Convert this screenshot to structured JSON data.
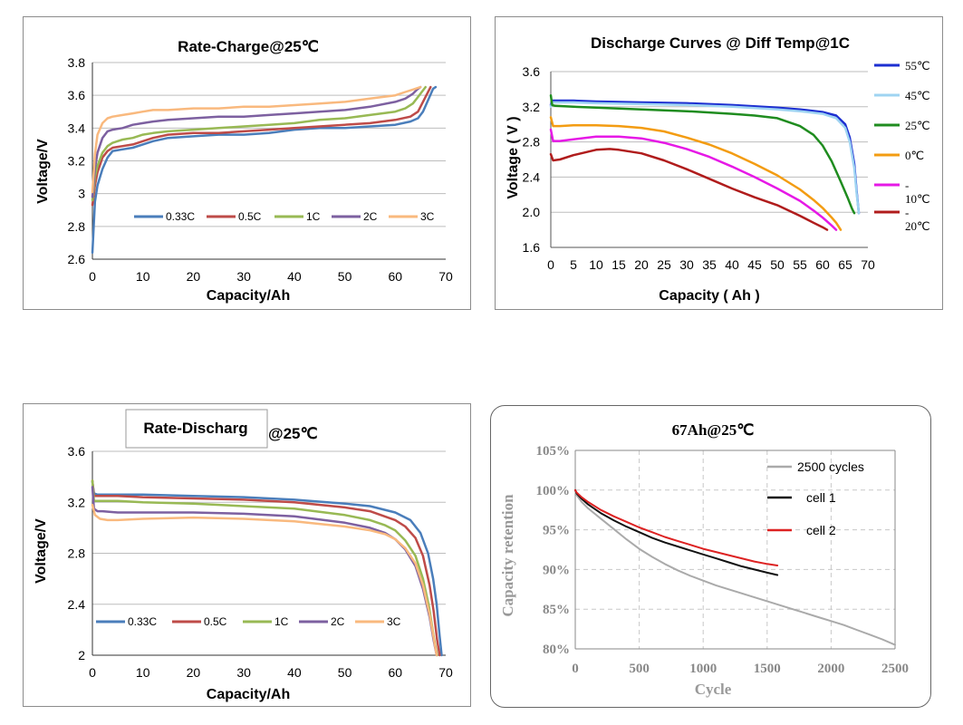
{
  "chart_data": [
    {
      "type": "line",
      "title": "Rate-Charge@25℃",
      "xlabel": "Capacity/Ah",
      "ylabel": "Voltage/V",
      "xlim": [
        0,
        70
      ],
      "ylim": [
        2.6,
        3.8
      ],
      "xticks": [
        "0",
        "10",
        "20",
        "30",
        "40",
        "50",
        "60",
        "70"
      ],
      "yticks": [
        "2.6",
        "2.8",
        "3",
        "3.2",
        "3.4",
        "3.6",
        "3.8"
      ],
      "grid": "horizontal",
      "legend": "bottom-left inside",
      "series": [
        {
          "name": "0.33C",
          "color": "#4a7ebb",
          "x": [
            0,
            0.5,
            1,
            2,
            3,
            4,
            6,
            8,
            10,
            12,
            15,
            20,
            25,
            30,
            35,
            40,
            45,
            50,
            55,
            60,
            63,
            64.5,
            65.5,
            66.5,
            67.5,
            68
          ],
          "y": [
            2.64,
            2.95,
            3.05,
            3.15,
            3.22,
            3.26,
            3.27,
            3.28,
            3.3,
            3.32,
            3.34,
            3.35,
            3.36,
            3.36,
            3.37,
            3.39,
            3.4,
            3.4,
            3.41,
            3.42,
            3.44,
            3.46,
            3.5,
            3.57,
            3.64,
            3.65
          ]
        },
        {
          "name": "0.5C",
          "color": "#be4b48",
          "x": [
            0,
            0.5,
            1,
            2,
            3,
            4,
            6,
            8,
            10,
            12,
            15,
            20,
            25,
            30,
            35,
            40,
            45,
            50,
            55,
            60,
            63,
            64.5,
            65.5,
            66.5,
            67
          ],
          "y": [
            2.93,
            3.05,
            3.13,
            3.22,
            3.26,
            3.28,
            3.29,
            3.3,
            3.32,
            3.34,
            3.36,
            3.37,
            3.37,
            3.38,
            3.39,
            3.4,
            3.41,
            3.42,
            3.43,
            3.45,
            3.47,
            3.5,
            3.56,
            3.62,
            3.65
          ]
        },
        {
          "name": "1C",
          "color": "#98b954",
          "x": [
            0,
            0.5,
            1,
            2,
            3,
            4,
            6,
            8,
            10,
            12,
            15,
            20,
            25,
            30,
            35,
            40,
            45,
            50,
            55,
            60,
            62,
            63.5,
            64.5,
            65.5,
            66
          ],
          "y": [
            2.96,
            3.1,
            3.17,
            3.25,
            3.29,
            3.31,
            3.33,
            3.34,
            3.36,
            3.37,
            3.38,
            3.39,
            3.4,
            3.41,
            3.42,
            3.43,
            3.45,
            3.46,
            3.48,
            3.5,
            3.52,
            3.55,
            3.59,
            3.63,
            3.65
          ]
        },
        {
          "name": "2C",
          "color": "#7d60a0",
          "x": [
            0,
            0.5,
            1,
            2,
            3,
            4,
            6,
            8,
            10,
            12,
            15,
            20,
            25,
            30,
            35,
            40,
            45,
            50,
            55,
            60,
            62,
            63.5,
            64.5,
            65
          ],
          "y": [
            2.98,
            3.15,
            3.25,
            3.34,
            3.38,
            3.39,
            3.4,
            3.42,
            3.43,
            3.44,
            3.45,
            3.46,
            3.47,
            3.47,
            3.48,
            3.49,
            3.5,
            3.51,
            3.53,
            3.56,
            3.58,
            3.61,
            3.64,
            3.65
          ]
        },
        {
          "name": "3C",
          "color": "#f9b97e",
          "x": [
            0,
            0.5,
            1,
            2,
            3,
            4,
            6,
            8,
            10,
            12,
            15,
            20,
            25,
            30,
            35,
            40,
            45,
            50,
            55,
            60,
            62,
            64,
            65
          ],
          "y": [
            3.01,
            3.24,
            3.36,
            3.43,
            3.46,
            3.47,
            3.48,
            3.49,
            3.5,
            3.51,
            3.51,
            3.52,
            3.52,
            3.53,
            3.53,
            3.54,
            3.55,
            3.56,
            3.58,
            3.6,
            3.62,
            3.64,
            3.65
          ]
        }
      ]
    },
    {
      "type": "line",
      "title": "Discharge Curves @ Diff Temp@1C",
      "xlabel": "Capacity ( Ah )",
      "ylabel": "Voltage ( V )",
      "xlim": [
        0,
        70
      ],
      "ylim": [
        1.6,
        3.6
      ],
      "xticks": [
        "0",
        "5",
        "10",
        "15",
        "20",
        "25",
        "30",
        "35",
        "40",
        "45",
        "50",
        "55",
        "60",
        "65",
        "70"
      ],
      "yticks": [
        "1.6",
        "2.0",
        "2.4",
        "2.8",
        "3.2",
        "3.6"
      ],
      "grid": "horizontal",
      "legend": "right",
      "series": [
        {
          "name": "55℃",
          "color": "#1d2fd1",
          "x": [
            0,
            0.3,
            1,
            5,
            10,
            20,
            30,
            40,
            50,
            55,
            60,
            63,
            65,
            66,
            67,
            67.5,
            68
          ],
          "y": [
            3.22,
            3.27,
            3.27,
            3.27,
            3.26,
            3.25,
            3.24,
            3.22,
            3.19,
            3.17,
            3.14,
            3.1,
            3.0,
            2.85,
            2.55,
            2.25,
            1.99
          ]
        },
        {
          "name": "45℃",
          "color": "#9fd4f2",
          "x": [
            0,
            0.3,
            1,
            5,
            10,
            20,
            30,
            40,
            50,
            55,
            60,
            63,
            65,
            66,
            67,
            67.5,
            68
          ],
          "y": [
            3.2,
            3.25,
            3.25,
            3.25,
            3.24,
            3.23,
            3.22,
            3.2,
            3.17,
            3.15,
            3.12,
            3.07,
            2.96,
            2.8,
            2.5,
            2.22,
            1.99
          ]
        },
        {
          "name": "25℃",
          "color": "#1f8c1f",
          "x": [
            0,
            0.3,
            1,
            5,
            10,
            20,
            30,
            40,
            45,
            50,
            55,
            58,
            60,
            62,
            64,
            65.5,
            66.5,
            67
          ],
          "y": [
            3.33,
            3.22,
            3.21,
            3.2,
            3.19,
            3.17,
            3.15,
            3.12,
            3.1,
            3.07,
            2.98,
            2.88,
            2.76,
            2.58,
            2.35,
            2.17,
            2.04,
            1.99
          ]
        },
        {
          "name": "0℃",
          "color": "#f39c12",
          "x": [
            0,
            0.5,
            2,
            5,
            10,
            15,
            20,
            25,
            30,
            35,
            40,
            45,
            50,
            55,
            58,
            60,
            62,
            63,
            64
          ],
          "y": [
            3.08,
            2.98,
            2.98,
            2.99,
            2.99,
            2.98,
            2.96,
            2.92,
            2.85,
            2.77,
            2.67,
            2.55,
            2.42,
            2.26,
            2.14,
            2.05,
            1.94,
            1.88,
            1.8
          ]
        },
        {
          "name": "-10℃",
          "color": "#e619e6",
          "x": [
            0,
            0.5,
            2,
            5,
            10,
            15,
            20,
            25,
            30,
            35,
            40,
            45,
            50,
            55,
            58,
            60,
            62,
            63
          ],
          "y": [
            2.94,
            2.81,
            2.81,
            2.83,
            2.86,
            2.86,
            2.84,
            2.79,
            2.72,
            2.63,
            2.52,
            2.4,
            2.27,
            2.13,
            2.02,
            1.94,
            1.85,
            1.8
          ]
        },
        {
          "name": "-20℃",
          "color": "#b01c1c",
          "x": [
            0,
            0.5,
            2,
            5,
            10,
            13,
            15,
            20,
            25,
            30,
            35,
            40,
            45,
            50,
            55,
            58,
            60,
            61
          ],
          "y": [
            2.66,
            2.59,
            2.6,
            2.65,
            2.71,
            2.72,
            2.71,
            2.67,
            2.59,
            2.49,
            2.38,
            2.27,
            2.17,
            2.08,
            1.96,
            1.88,
            1.83,
            1.8
          ]
        }
      ]
    },
    {
      "type": "line",
      "title": "Rate-Discharg @25℃",
      "title_box_text": "Rate-Discharg",
      "title_suffix": "@25℃",
      "xlabel": "Capacity/Ah",
      "ylabel": "Voltage/V",
      "xlim": [
        0,
        70
      ],
      "ylim": [
        2,
        3.6
      ],
      "xticks": [
        "0",
        "10",
        "20",
        "30",
        "40",
        "50",
        "60",
        "70"
      ],
      "yticks": [
        "2",
        "2.4",
        "2.8",
        "3.2",
        "3.6"
      ],
      "grid": "horizontal",
      "legend": "bottom-left inside",
      "series": [
        {
          "name": "0.33C",
          "color": "#4a7ebb",
          "x": [
            0,
            0.3,
            1,
            5,
            10,
            20,
            30,
            40,
            50,
            55,
            60,
            63,
            65,
            66.5,
            67.5,
            68.2,
            68.8,
            69.2
          ],
          "y": [
            3.36,
            3.27,
            3.26,
            3.26,
            3.26,
            3.25,
            3.24,
            3.22,
            3.19,
            3.17,
            3.12,
            3.06,
            2.96,
            2.8,
            2.6,
            2.4,
            2.15,
            2.0
          ]
        },
        {
          "name": "0.5C",
          "color": "#be4b48",
          "x": [
            0,
            0.3,
            1,
            5,
            10,
            20,
            30,
            40,
            50,
            55,
            60,
            62,
            64,
            65.5,
            66.8,
            67.6,
            68.3,
            68.8
          ],
          "y": [
            3.37,
            3.25,
            3.25,
            3.25,
            3.24,
            3.23,
            3.22,
            3.2,
            3.16,
            3.13,
            3.06,
            3.01,
            2.92,
            2.78,
            2.55,
            2.35,
            2.12,
            2.0
          ]
        },
        {
          "name": "1C",
          "color": "#98b954",
          "x": [
            0,
            0.3,
            1,
            5,
            10,
            20,
            30,
            40,
            50,
            55,
            58,
            60,
            62,
            64,
            65.5,
            66.7,
            67.6,
            68.3
          ],
          "y": [
            3.37,
            3.21,
            3.21,
            3.21,
            3.2,
            3.19,
            3.17,
            3.15,
            3.1,
            3.06,
            3.02,
            2.98,
            2.9,
            2.78,
            2.6,
            2.38,
            2.15,
            2.0
          ]
        },
        {
          "name": "2C",
          "color": "#7d60a0",
          "x": [
            0,
            0.3,
            1,
            2,
            5,
            10,
            20,
            30,
            40,
            50,
            55,
            58,
            60,
            62,
            64,
            65.5,
            66.8,
            67.6,
            68.2
          ],
          "y": [
            3.32,
            3.15,
            3.13,
            3.13,
            3.12,
            3.12,
            3.12,
            3.11,
            3.09,
            3.04,
            3.0,
            2.96,
            2.91,
            2.83,
            2.7,
            2.52,
            2.3,
            2.12,
            2.0
          ]
        },
        {
          "name": "3C",
          "color": "#f9b97e",
          "x": [
            0,
            0.5,
            1.5,
            3,
            5,
            10,
            20,
            30,
            40,
            50,
            55,
            58,
            60,
            62,
            64,
            65.5,
            66.8,
            67.6,
            68.2
          ],
          "y": [
            3.18,
            3.1,
            3.07,
            3.06,
            3.06,
            3.07,
            3.08,
            3.07,
            3.05,
            3.01,
            2.98,
            2.95,
            2.91,
            2.84,
            2.72,
            2.55,
            2.32,
            2.14,
            2.0
          ]
        }
      ]
    },
    {
      "type": "line",
      "title": "67Ah@25℃",
      "xlabel": "Cycle",
      "ylabel": "Capacity retention",
      "xlim": [
        0,
        2500
      ],
      "ylim": [
        80,
        105
      ],
      "xticks": [
        "0",
        "500",
        "1000",
        "1500",
        "2000",
        "2500"
      ],
      "yticks": [
        "80%",
        "85%",
        "90%",
        "95%",
        "100%",
        "105%"
      ],
      "grid": "both dashed",
      "legend": "top-right inside",
      "series": [
        {
          "name": "2500  cycles",
          "color": "#aaaaaa",
          "x": [
            0,
            10,
            50,
            100,
            200,
            300,
            400,
            500,
            600,
            700,
            800,
            900,
            1000,
            1100,
            1200,
            1300,
            1400,
            1500,
            1600,
            1700,
            1800,
            1900,
            2000,
            2100,
            2200,
            2300,
            2400,
            2500
          ],
          "y": [
            100,
            99.4,
            98.5,
            97.7,
            96.4,
            95.1,
            93.8,
            92.6,
            91.6,
            90.7,
            89.9,
            89.2,
            88.6,
            88.0,
            87.5,
            87.0,
            86.5,
            86.0,
            85.5,
            85.0,
            84.5,
            84.0,
            83.5,
            83.0,
            82.4,
            81.8,
            81.2,
            80.5
          ]
        },
        {
          "name": "cell 1",
          "color": "#111111",
          "x": [
            0,
            10,
            50,
            100,
            200,
            300,
            400,
            500,
            600,
            700,
            800,
            900,
            1000,
            1100,
            1200,
            1300,
            1400,
            1500,
            1580
          ],
          "y": [
            100,
            99.6,
            98.9,
            98.2,
            97.1,
            96.2,
            95.4,
            94.7,
            94.0,
            93.4,
            92.9,
            92.4,
            91.9,
            91.4,
            90.9,
            90.4,
            90.0,
            89.6,
            89.3
          ]
        },
        {
          "name": "cell 2",
          "color": "#dd2222",
          "x": [
            0,
            10,
            50,
            100,
            200,
            300,
            400,
            500,
            600,
            700,
            800,
            900,
            1000,
            1100,
            1200,
            1300,
            1400,
            1500,
            1580
          ],
          "y": [
            100,
            99.7,
            99.1,
            98.5,
            97.5,
            96.7,
            96.0,
            95.3,
            94.7,
            94.1,
            93.6,
            93.1,
            92.6,
            92.2,
            91.8,
            91.4,
            91.0,
            90.7,
            90.5
          ]
        }
      ]
    }
  ]
}
